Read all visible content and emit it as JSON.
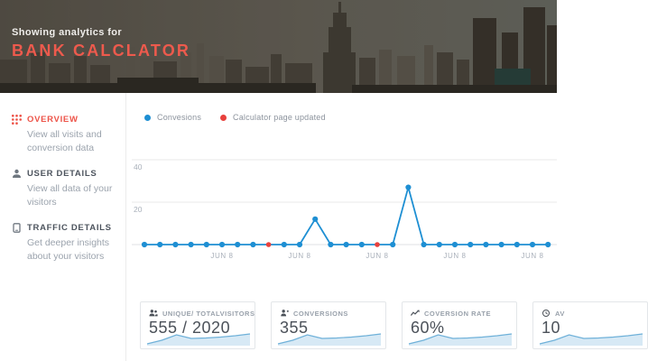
{
  "header": {
    "subtitle": "Showing analytics for",
    "title": "BANK CALCLATOR",
    "accent_color": "#ed5a4d"
  },
  "sidebar": {
    "items": [
      {
        "icon": "grid-dots-icon",
        "label": "OVERVIEW",
        "description": "View all visits and conversion data",
        "active": true
      },
      {
        "icon": "user-icon",
        "label": "USER DETAILS",
        "description": "View all data of your visitors",
        "active": false
      },
      {
        "icon": "traffic-icon",
        "label": "TRAFFIC DETAILS",
        "description": "Get deeper insights about your visitors",
        "active": false
      }
    ]
  },
  "legend": [
    {
      "label": "Convesions",
      "color": "#1e8fd3"
    },
    {
      "label": "Calculator page updated",
      "color": "#e8413c"
    }
  ],
  "chart_data": {
    "type": "line",
    "title": "",
    "xlabel": "",
    "ylabel": "",
    "series": [
      {
        "name": "Convesions",
        "color": "#1e8fd3",
        "values": [
          0,
          0,
          0,
          0,
          0,
          0,
          0,
          0,
          0,
          0,
          0,
          12,
          0,
          0,
          0,
          0,
          0,
          27,
          0,
          0,
          0,
          0,
          0,
          0,
          0,
          0,
          0
        ]
      }
    ],
    "annotations": [
      {
        "name": "Calculator page updated",
        "color": "#e8413c",
        "indices": [
          8,
          15
        ]
      }
    ],
    "x_tick_labels": [
      "JUN 8",
      "JUN 8",
      "JUN 8",
      "JUN 8",
      "JUN 8"
    ],
    "x_tick_indices": [
      5,
      10,
      15,
      20,
      25
    ],
    "y_ticks": [
      20,
      40
    ],
    "ylim": [
      0,
      44
    ],
    "grid": true,
    "legend_position": "top-left"
  },
  "cards": [
    {
      "icon": "people-icon",
      "label": "UNIQUE/ TOTALVISITORS",
      "value": "555 / 2020",
      "sparkline": [
        1,
        5,
        11,
        7,
        7.5,
        8.5,
        10,
        12
      ]
    },
    {
      "icon": "person-plus-icon",
      "label": "CONVERSIONS",
      "value": "355",
      "sparkline": [
        1,
        5,
        11,
        7,
        7.5,
        8.5,
        10,
        12
      ]
    },
    {
      "icon": "trend-icon",
      "label": "COVERSION RATE",
      "value": "60%",
      "sparkline": [
        1,
        5,
        11,
        7,
        7.5,
        8.5,
        10,
        12
      ]
    },
    {
      "icon": "clock-icon",
      "label": "AV",
      "value": "10",
      "sparkline": [
        1,
        5,
        11,
        7,
        7.5,
        8.5,
        10,
        12
      ]
    }
  ]
}
